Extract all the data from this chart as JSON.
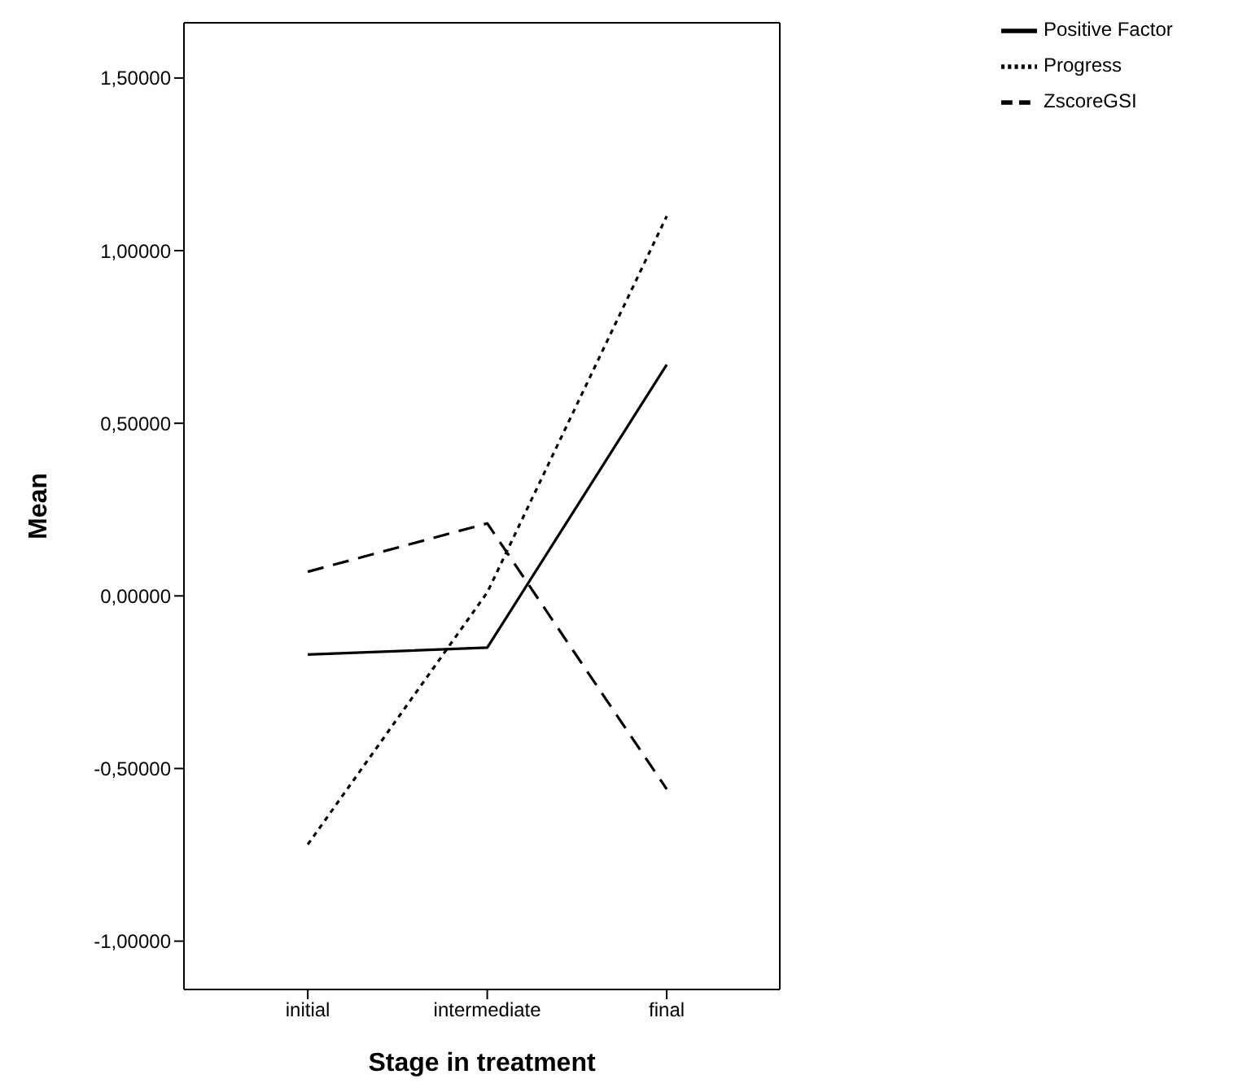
{
  "chart_data": {
    "type": "line",
    "xlabel": "Stage in treatment",
    "ylabel": "Mean",
    "categories": [
      "initial",
      "intermediate",
      "final"
    ],
    "series": [
      {
        "name": "Positive Factor",
        "color": "#000000",
        "line_style": "solid",
        "values": [
          -0.17,
          -0.15,
          0.67
        ]
      },
      {
        "name": "Progress",
        "color": "#000000",
        "line_style": "dotted",
        "values": [
          -0.72,
          0.01,
          1.1
        ]
      },
      {
        "name": "ZscoreGSI",
        "color": "#000000",
        "line_style": "dashed",
        "values": [
          0.07,
          0.21,
          -0.56
        ]
      }
    ],
    "ylim": [
      -1.14,
      1.66
    ],
    "yticks": [
      {
        "value": -1,
        "label": "-1,00000"
      },
      {
        "value": -0.5,
        "label": "-0,50000"
      },
      {
        "value": 0,
        "label": "0,00000"
      },
      {
        "value": 0.5,
        "label": "0,50000"
      },
      {
        "value": 1,
        "label": "1,00000"
      },
      {
        "value": 1.5,
        "label": "1,50000"
      }
    ],
    "grid": false,
    "legend": "top right",
    "marker": "none"
  }
}
